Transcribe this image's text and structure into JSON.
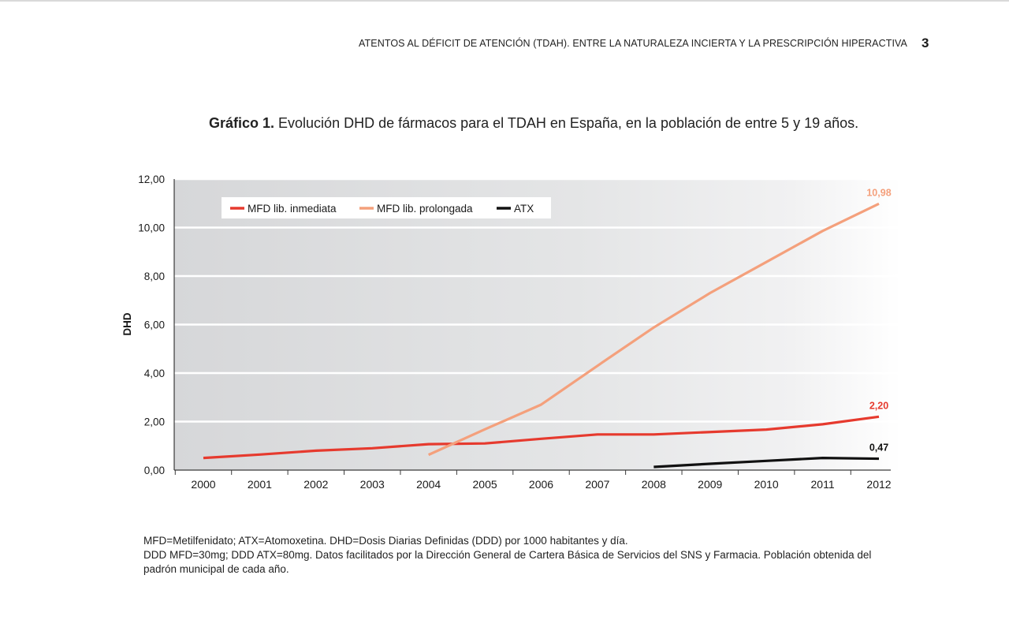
{
  "header": {
    "running_title": "ATENTOS AL DÉFICIT DE ATENCIÓN (TDAH). ENTRE LA NATURALEZA INCIERTA Y LA PRESCRIPCIÓN HIPERACTIVA",
    "page_number": "3"
  },
  "figure": {
    "label": "Gráfico 1.",
    "caption": " Evolución DHD de fármacos para el TDAH en España, en la población de entre 5 y 19 años."
  },
  "chart_data": {
    "type": "line",
    "ylabel": "DHD",
    "xlabel": "",
    "ylim": [
      0,
      12
    ],
    "y_ticks": [
      0,
      2,
      4,
      6,
      8,
      10,
      12
    ],
    "y_tick_labels": [
      "0,00",
      "2,00",
      "4,00",
      "6,00",
      "8,00",
      "10,00",
      "12,00"
    ],
    "categories": [
      "2000",
      "2001",
      "2002",
      "2003",
      "2004",
      "2005",
      "2006",
      "2007",
      "2008",
      "2009",
      "2010",
      "2011",
      "2012"
    ],
    "grid": true,
    "legend_position": "top-left",
    "series": [
      {
        "name": "MFD lib. inmediata",
        "color": "#e63a2e",
        "x": [
          2000,
          2001,
          2002,
          2003,
          2004,
          2005,
          2006,
          2007,
          2008,
          2009,
          2010,
          2011,
          2012
        ],
        "values": [
          0.5,
          0.64,
          0.8,
          0.9,
          1.07,
          1.1,
          1.29,
          1.47,
          1.47,
          1.57,
          1.67,
          1.89,
          2.2
        ],
        "end_label": "2,20"
      },
      {
        "name": "MFD lib. prolongada",
        "color": "#f4a07c",
        "x": [
          2004,
          2005,
          2006,
          2007,
          2008,
          2009,
          2010,
          2011,
          2012
        ],
        "values": [
          0.63,
          1.68,
          2.7,
          4.3,
          5.88,
          7.3,
          8.58,
          9.86,
          10.98
        ],
        "end_label": "10,98"
      },
      {
        "name": "ATX",
        "color": "#111111",
        "x": [
          2008,
          2009,
          2010,
          2011,
          2012
        ],
        "values": [
          0.13,
          0.26,
          0.38,
          0.5,
          0.47
        ],
        "end_label": "0,47"
      }
    ]
  },
  "notes": {
    "line1": "MFD=Metilfenidato; ATX=Atomoxetina. DHD=Dosis Diarias Definidas (DDD) por 1000 habitantes y día.",
    "line2": "DDD MFD=30mg; DDD ATX=80mg. Datos facilitados por la Dirección General de Cartera Básica de Servicios del SNS y Farmacia. Población obtenida del",
    "line3": "padrón municipal de cada año."
  }
}
